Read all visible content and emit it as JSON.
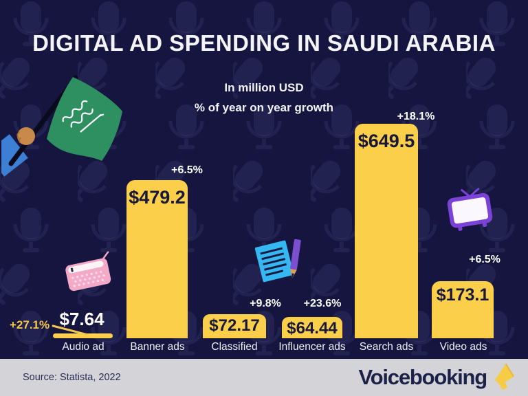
{
  "header": {
    "title": "DIGITAL AD SPENDING IN SAUDI ARABIA"
  },
  "subtitle": {
    "line1": "In million USD",
    "line2": "% of year on year growth"
  },
  "chart_data": {
    "type": "bar",
    "title": "DIGITAL AD SPENDING IN SAUDI ARABIA",
    "subtitle": [
      "In million USD",
      "% of year on year growth"
    ],
    "unit": "million USD",
    "categories": [
      "Audio ad",
      "Banner ads",
      "Classified",
      "Influencer ads",
      "Search ads",
      "Video ads"
    ],
    "values": [
      7.64,
      479.2,
      72.17,
      64.44,
      649.5,
      173.1
    ],
    "value_labels": [
      "$7.64",
      "$479.2",
      "$72.17",
      "$64.44",
      "$649.5",
      "$173.1"
    ],
    "growth_labels": [
      "+27.1%",
      "+6.5%",
      "+9.8%",
      "+23.6%",
      "+18.1%",
      "+6.5%"
    ],
    "ylim": [
      0,
      700
    ],
    "grid": false,
    "legend": false,
    "bar_color": "#FCCF4A",
    "value_text_color": "#18183C",
    "growth_text_color": "#FFFFFF",
    "audio_growth_color": "#F3C94B"
  },
  "icons": {
    "flag": "saudi-arabia-flag-icon",
    "radio": "radio-icon",
    "notepad": "notepad-pencil-icon",
    "tv": "tv-icon",
    "megaphone": "megaphone-icon",
    "background": "microphone-pattern"
  },
  "footer": {
    "source": "Source: Statista, 2022",
    "brand": "Voicebooking"
  },
  "colors": {
    "background": "#151540",
    "bar": "#FCCF4A",
    "accent_yellow": "#F3C94B",
    "footer_bg": "#D3D3D8",
    "navy_text": "#1C2148",
    "flag_green": "#2E9060"
  }
}
